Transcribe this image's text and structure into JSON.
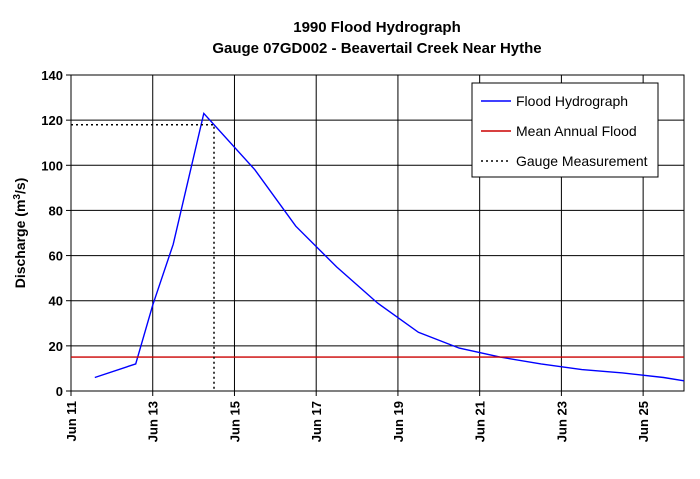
{
  "chart_data": {
    "type": "line",
    "title": "1990 Flood Hydrograph",
    "subtitle": "Gauge 07GD002 - Beavertail Creek Near Hythe",
    "ylabel_main": "Discharge (m",
    "ylabel_sup": "3",
    "ylabel_end": "/s)",
    "ylim": [
      0,
      140
    ],
    "yticks": [
      "0",
      "20",
      "40",
      "60",
      "80",
      "100",
      "120",
      "140"
    ],
    "xlim": [
      "1990-06-11",
      "1990-06-26"
    ],
    "xticks": [
      {
        "date": "1990-06-11",
        "label": "Jun 11"
      },
      {
        "date": "1990-06-13",
        "label": "Jun 13"
      },
      {
        "date": "1990-06-15",
        "label": "Jun 15"
      },
      {
        "date": "1990-06-17",
        "label": "Jun 17"
      },
      {
        "date": "1990-06-19",
        "label": "Jun 19"
      },
      {
        "date": "1990-06-21",
        "label": "Jun 21"
      },
      {
        "date": "1990-06-23",
        "label": "Jun 23"
      },
      {
        "date": "1990-06-25",
        "label": "Jun 25"
      }
    ],
    "grid": true,
    "legend_position": "top-right",
    "series": [
      {
        "name": "Flood Hydrograph",
        "color": "#0000ff",
        "style": "solid",
        "points": [
          {
            "x": "1990-06-11 14:00",
            "y": 6
          },
          {
            "x": "1990-06-12 14:00",
            "y": 12
          },
          {
            "x": "1990-06-13 00:00",
            "y": 38
          },
          {
            "x": "1990-06-13 12:00",
            "y": 65
          },
          {
            "x": "1990-06-14 06:00",
            "y": 123
          },
          {
            "x": "1990-06-15 12:00",
            "y": 98
          },
          {
            "x": "1990-06-16 12:00",
            "y": 73
          },
          {
            "x": "1990-06-17 12:00",
            "y": 55
          },
          {
            "x": "1990-06-18 12:00",
            "y": 39
          },
          {
            "x": "1990-06-19 12:00",
            "y": 26
          },
          {
            "x": "1990-06-20 12:00",
            "y": 19
          },
          {
            "x": "1990-06-21 12:00",
            "y": 15
          },
          {
            "x": "1990-06-22 12:00",
            "y": 12
          },
          {
            "x": "1990-06-23 12:00",
            "y": 9.5
          },
          {
            "x": "1990-06-24 12:00",
            "y": 8
          },
          {
            "x": "1990-06-25 12:00",
            "y": 6
          },
          {
            "x": "1990-06-26 00:00",
            "y": 4.5
          }
        ]
      },
      {
        "name": "Mean Annual Flood",
        "color": "#cc0000",
        "style": "solid",
        "points": [
          {
            "x": "1990-06-11 00:00",
            "y": 15
          },
          {
            "x": "1990-06-26 00:00",
            "y": 15
          }
        ]
      },
      {
        "name": "Gauge Measurement",
        "color": "#000000",
        "style": "dotted",
        "points": [
          {
            "x": "1990-06-11 00:00",
            "y": 118
          },
          {
            "x": "1990-06-14 12:00",
            "y": 118
          },
          {
            "x": "1990-06-14 12:00",
            "y": 0
          }
        ]
      }
    ]
  }
}
